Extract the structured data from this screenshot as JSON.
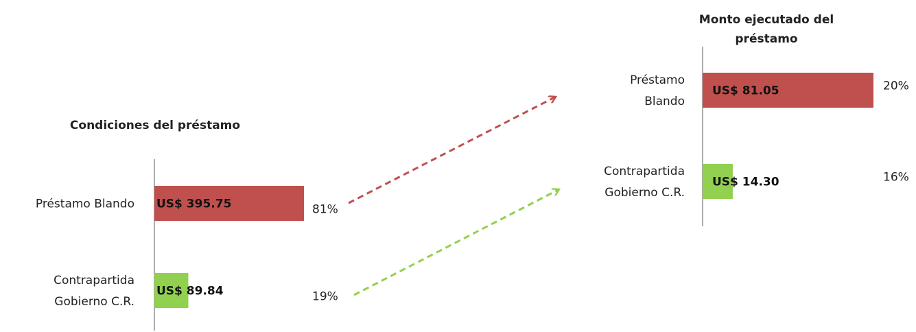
{
  "colors": {
    "prestamo": "#c0504d",
    "contrapartida": "#92d050",
    "axis": "#7f7f7f"
  },
  "chart_data": [
    {
      "type": "bar",
      "orientation": "horizontal",
      "title": "Condiciones del préstamo",
      "categories": [
        [
          "Préstamo Blando"
        ],
        [
          "Contrapartida",
          "Gobierno C.R."
        ]
      ],
      "values": [
        395.75,
        89.84
      ],
      "value_labels": [
        "US$ 395.75",
        "US$ 89.84"
      ],
      "percent_labels": [
        "81%",
        "19%"
      ]
    },
    {
      "type": "bar",
      "orientation": "horizontal",
      "title": [
        "Monto ejecutado del",
        "préstamo"
      ],
      "categories": [
        [
          "Préstamo",
          "Blando"
        ],
        [
          "Contrapartida",
          "Gobierno C.R."
        ]
      ],
      "values": [
        81.05,
        14.3
      ],
      "value_labels": [
        "US$ 81.05",
        "US$ 14.30"
      ],
      "percent_labels": [
        "20%",
        "16%"
      ]
    }
  ]
}
